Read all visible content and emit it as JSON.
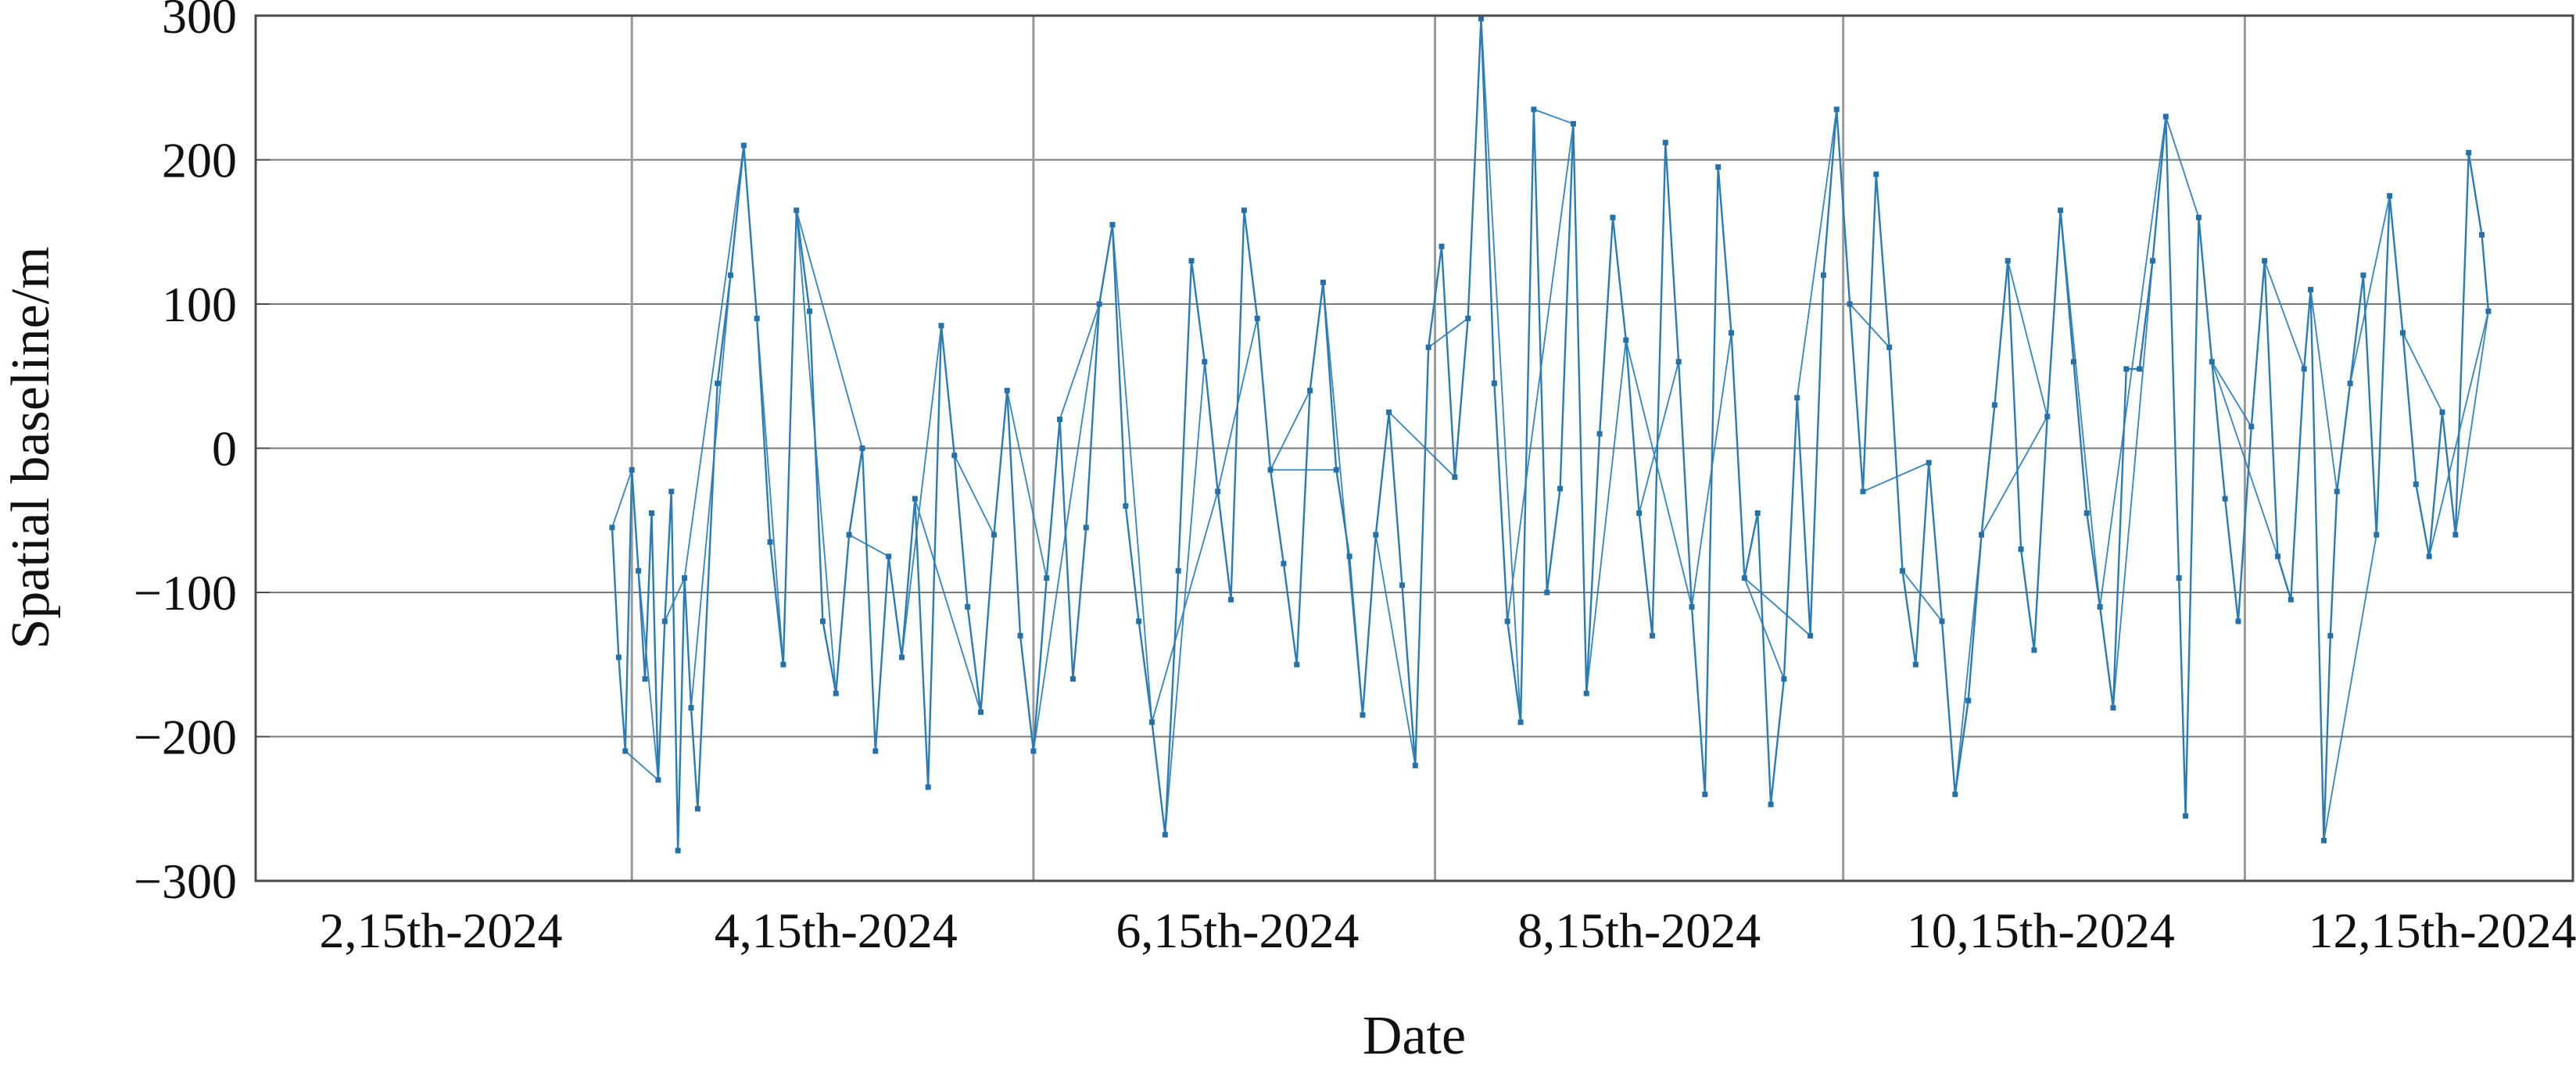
{
  "chart_data": {
    "type": "line",
    "title": "",
    "xlabel": "Date",
    "ylabel": "Spatial baseline/m",
    "grid": "on",
    "legend": "none",
    "ylim": [
      -300,
      300
    ],
    "y_ticks": [
      300,
      200,
      100,
      0,
      -100,
      -200,
      -300
    ],
    "y_tick_labels": [
      "300",
      "200",
      "100",
      "0",
      "−100",
      "−200",
      "−300"
    ],
    "x_tick_labels": [
      "2,15th-2024",
      "4,15th-2024",
      "6,15th-2024",
      "8,15th-2024",
      "10,15th-2024",
      "12,15th-2024"
    ],
    "x_tick_day_of_year": [
      46,
      106,
      167,
      228,
      289,
      350
    ],
    "x_gridline_day_of_year": [
      75,
      136,
      197,
      259,
      320
    ],
    "x_axis_range_days": [
      18,
      370
    ],
    "series": [
      {
        "name": "spatial-baseline",
        "color": "#2b7cb5",
        "marker": "square",
        "x_day_of_year_2024": [
          72,
          73,
          74,
          75,
          76,
          77,
          78,
          79,
          80,
          81,
          82,
          83,
          84,
          85,
          88,
          90,
          92,
          94,
          96,
          98,
          100,
          102,
          104,
          106,
          108,
          110,
          112,
          114,
          116,
          118,
          120,
          122,
          124,
          126,
          128,
          130,
          132,
          134,
          136,
          138,
          140,
          142,
          144,
          146,
          148,
          150,
          152,
          154,
          156,
          158,
          160,
          162,
          164,
          166,
          168,
          170,
          172,
          174,
          176,
          178,
          180,
          182,
          184,
          186,
          188,
          190,
          192,
          194,
          196,
          198,
          200,
          202,
          204,
          206,
          208,
          210,
          212,
          214,
          216,
          218,
          220,
          222,
          224,
          226,
          228,
          230,
          232,
          234,
          236,
          238,
          240,
          242,
          244,
          246,
          248,
          250,
          252,
          254,
          256,
          258,
          260,
          262,
          264,
          266,
          268,
          270,
          272,
          274,
          276,
          278,
          280,
          282,
          284,
          286,
          288,
          290,
          292,
          294,
          296,
          298,
          300,
          302,
          304,
          306,
          308,
          310,
          311,
          313,
          315,
          317,
          319,
          321,
          323,
          325,
          327,
          329,
          330,
          332,
          333,
          334,
          336,
          338,
          340,
          342,
          344,
          346,
          348,
          350,
          352,
          354,
          356,
          357
        ],
        "values": [
          -55,
          -145,
          -210,
          -15,
          -85,
          -160,
          -45,
          -230,
          -120,
          -30,
          -279,
          -90,
          -180,
          -250,
          45,
          120,
          210,
          90,
          -65,
          -150,
          165,
          95,
          -120,
          -170,
          -60,
          0,
          -210,
          -75,
          -145,
          -35,
          -235,
          85,
          -5,
          -110,
          -183,
          -60,
          40,
          -130,
          -210,
          -90,
          20,
          -160,
          -55,
          100,
          155,
          -40,
          -120,
          -190,
          -268,
          -85,
          130,
          60,
          -30,
          -105,
          165,
          90,
          -15,
          -80,
          -150,
          40,
          115,
          -15,
          -75,
          -185,
          -60,
          25,
          -95,
          -220,
          70,
          140,
          -20,
          90,
          298,
          45,
          -120,
          -190,
          235,
          -100,
          -28,
          225,
          -170,
          10,
          160,
          75,
          -45,
          -130,
          212,
          60,
          -110,
          -240,
          195,
          80,
          -90,
          -45,
          -247,
          -160,
          35,
          -130,
          120,
          235,
          100,
          -30,
          190,
          70,
          -85,
          -150,
          -10,
          -120,
          -240,
          -175,
          -60,
          30,
          130,
          -70,
          -140,
          22,
          165,
          60,
          -45,
          -110,
          -180,
          55,
          55,
          130,
          230,
          -90,
          -255,
          160,
          60,
          -35,
          -120,
          15,
          130,
          -75,
          -105,
          55,
          110,
          -272,
          -130,
          -30,
          45,
          120,
          -60,
          175,
          80,
          -25,
          -75,
          25,
          -60,
          205,
          148,
          95
        ]
      }
    ]
  },
  "colors": {
    "background": "#ffffff",
    "line": "#2b7cb5",
    "marker": "#2470a8",
    "grid_horizontal": "#7a7a7a",
    "grid_vertical": "#9a9a9a",
    "axis_box": "#4a4a4a",
    "text": "#111111"
  }
}
